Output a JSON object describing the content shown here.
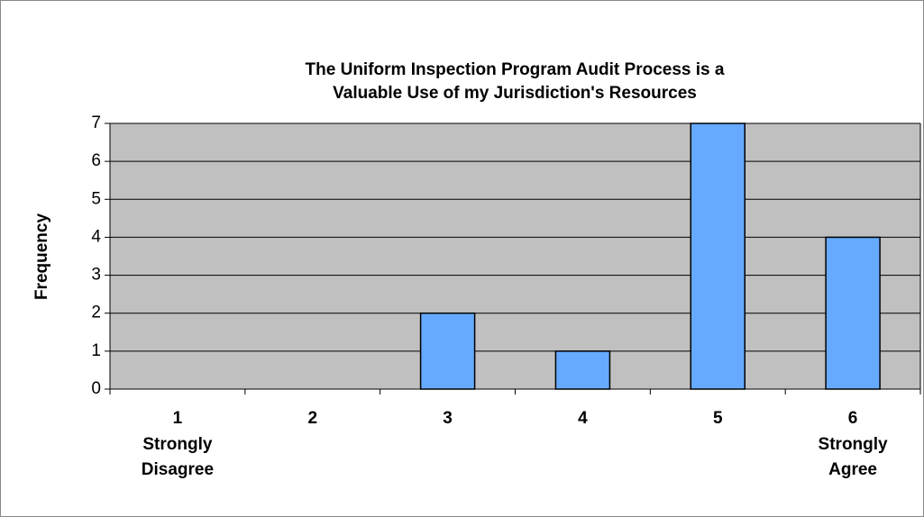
{
  "chart_data": {
    "type": "bar",
    "title": [
      "The Uniform Inspection Program Audit Process is a",
      "Valuable Use of my Jurisdiction's Resources"
    ],
    "y_label": "Frequency",
    "categories": [
      "1",
      "2",
      "3",
      "4",
      "5",
      "6"
    ],
    "category_sublabels": [
      [
        "Strongly",
        "Disagree"
      ],
      null,
      null,
      null,
      null,
      [
        "Strongly",
        "Agree"
      ]
    ],
    "values": [
      0,
      0,
      2,
      1,
      7,
      4
    ],
    "color": "#66aaff",
    "ylim": [
      0,
      7
    ],
    "yticks": [
      0,
      1,
      2,
      3,
      4,
      5,
      6,
      7
    ],
    "grid": true
  }
}
